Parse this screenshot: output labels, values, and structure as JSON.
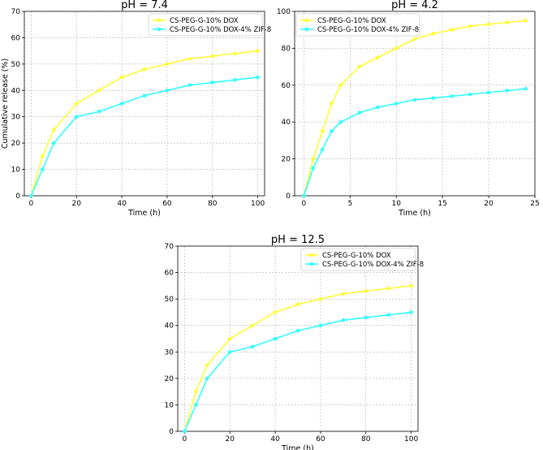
{
  "chart_data": [
    {
      "type": "line",
      "title": "pH = 7.4",
      "xlabel": "Time (h)",
      "ylabel": "Cumulative release (%)",
      "xlim": [
        -3,
        103
      ],
      "ylim": [
        0,
        70
      ],
      "xticks": [
        0,
        20,
        40,
        60,
        80,
        100
      ],
      "yticks": [
        0,
        10,
        20,
        30,
        40,
        50,
        60,
        70
      ],
      "grid": true,
      "legend": "top-right",
      "series": [
        {
          "name": "CS-PEG-G-10% DOX",
          "color": "#ffff33",
          "x": [
            0,
            5,
            10,
            20,
            30,
            40,
            50,
            60,
            70,
            80,
            90,
            100
          ],
          "y": [
            0,
            15,
            25,
            35,
            40,
            45,
            48,
            50,
            52,
            53,
            54,
            55
          ]
        },
        {
          "name": "CS-PEG-G-10% DOX-4% ZIF-8",
          "color": "#33ffff",
          "x": [
            0,
            5,
            10,
            20,
            30,
            40,
            50,
            60,
            70,
            80,
            90,
            100
          ],
          "y": [
            0,
            10,
            20,
            30,
            32,
            35,
            38,
            40,
            42,
            43,
            44,
            45
          ]
        }
      ]
    },
    {
      "type": "line",
      "title": "pH = 4.2",
      "xlabel": "Time (h)",
      "ylabel": "",
      "xlim": [
        -1,
        25
      ],
      "ylim": [
        0,
        100
      ],
      "xticks": [
        0,
        5,
        10,
        15,
        20,
        25
      ],
      "yticks": [
        0,
        20,
        40,
        60,
        80,
        100
      ],
      "grid": true,
      "legend": "top-left",
      "series": [
        {
          "name": "CS-PEG-G-10% DOX",
          "color": "#ffff33",
          "x": [
            0,
            1,
            2,
            3,
            4,
            6,
            8,
            10,
            12,
            14,
            16,
            18,
            20,
            22,
            24
          ],
          "y": [
            0,
            20,
            35,
            50,
            60,
            70,
            75,
            80,
            85,
            88,
            90,
            92,
            93,
            94,
            95
          ]
        },
        {
          "name": "CS-PEG-G-10% DOX-4% ZIF-8",
          "color": "#33ffff",
          "x": [
            0,
            1,
            2,
            3,
            4,
            6,
            8,
            10,
            12,
            14,
            16,
            18,
            20,
            22,
            24
          ],
          "y": [
            0,
            15,
            25,
            35,
            40,
            45,
            48,
            50,
            52,
            53,
            54,
            55,
            56,
            57,
            58
          ]
        }
      ]
    },
    {
      "type": "line",
      "title": "pH = 12.5",
      "xlabel": "Time (h)",
      "ylabel": "",
      "xlim": [
        -3,
        103
      ],
      "ylim": [
        0,
        70
      ],
      "xticks": [
        0,
        20,
        40,
        60,
        80,
        100
      ],
      "yticks": [
        0,
        10,
        20,
        30,
        40,
        50,
        60,
        70
      ],
      "grid": true,
      "legend": "top-right",
      "series": [
        {
          "name": "CS-PEG-G-10% DOX",
          "color": "#ffff33",
          "x": [
            0,
            5,
            10,
            20,
            30,
            40,
            50,
            60,
            70,
            80,
            90,
            100
          ],
          "y": [
            0,
            15,
            25,
            35,
            40,
            45,
            48,
            50,
            52,
            53,
            54,
            55
          ]
        },
        {
          "name": "CS-PEG-G-10% DOX-4% ZIF-8",
          "color": "#33ffff",
          "x": [
            0,
            5,
            10,
            20,
            30,
            40,
            50,
            60,
            70,
            80,
            90,
            100
          ],
          "y": [
            0,
            10,
            20,
            30,
            32,
            35,
            38,
            40,
            42,
            43,
            44,
            45
          ]
        }
      ]
    }
  ]
}
